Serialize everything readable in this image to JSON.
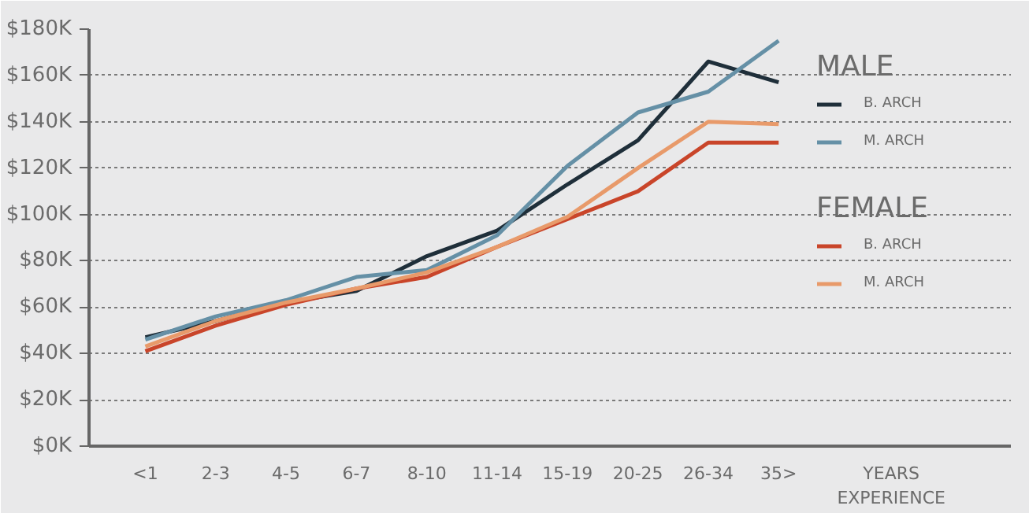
{
  "chart_data": {
    "type": "line",
    "categories": [
      "<1",
      "2-3",
      "4-5",
      "6-7",
      "8-10",
      "11-14",
      "15-19",
      "20-25",
      "26-34",
      "35>"
    ],
    "xlabel": "YEARS EXPERIENCE",
    "annotations": [
      "MALE",
      "FEMALE"
    ],
    "series": [
      {
        "name": "B. ARCH",
        "color": "#1f2f3a",
        "values": [
          47,
          54,
          62,
          67,
          82,
          93,
          113,
          132,
          166,
          157
        ]
      },
      {
        "name": "M. ARCH",
        "color": "#6590a6",
        "values": [
          46,
          56,
          63,
          73,
          76,
          91,
          121,
          144,
          153,
          175
        ]
      },
      {
        "name": "B. ARCH",
        "color": "#c9452a",
        "values": [
          41,
          52,
          61,
          68,
          73,
          86,
          98,
          110,
          131,
          131
        ]
      },
      {
        "name": "M. ARCH",
        "color": "#e89a6a",
        "values": [
          43,
          54,
          62,
          68,
          75,
          86,
          99,
          120,
          140,
          139
        ]
      }
    ],
    "ylim": [
      0,
      180
    ],
    "yticks": [
      {
        "value": 0,
        "label": "$0K"
      },
      {
        "value": 20,
        "label": "$20K"
      },
      {
        "value": 40,
        "label": "$40K"
      },
      {
        "value": 60,
        "label": "$60K"
      },
      {
        "value": 80,
        "label": "$80K"
      },
      {
        "value": 100,
        "label": "$100K"
      },
      {
        "value": 120,
        "label": "$120K"
      },
      {
        "value": 140,
        "label": "$140K"
      },
      {
        "value": 160,
        "label": "$160K"
      },
      {
        "value": 180,
        "label": "$180K"
      }
    ],
    "grid": "y",
    "legend": "right",
    "line_style": "solid"
  }
}
